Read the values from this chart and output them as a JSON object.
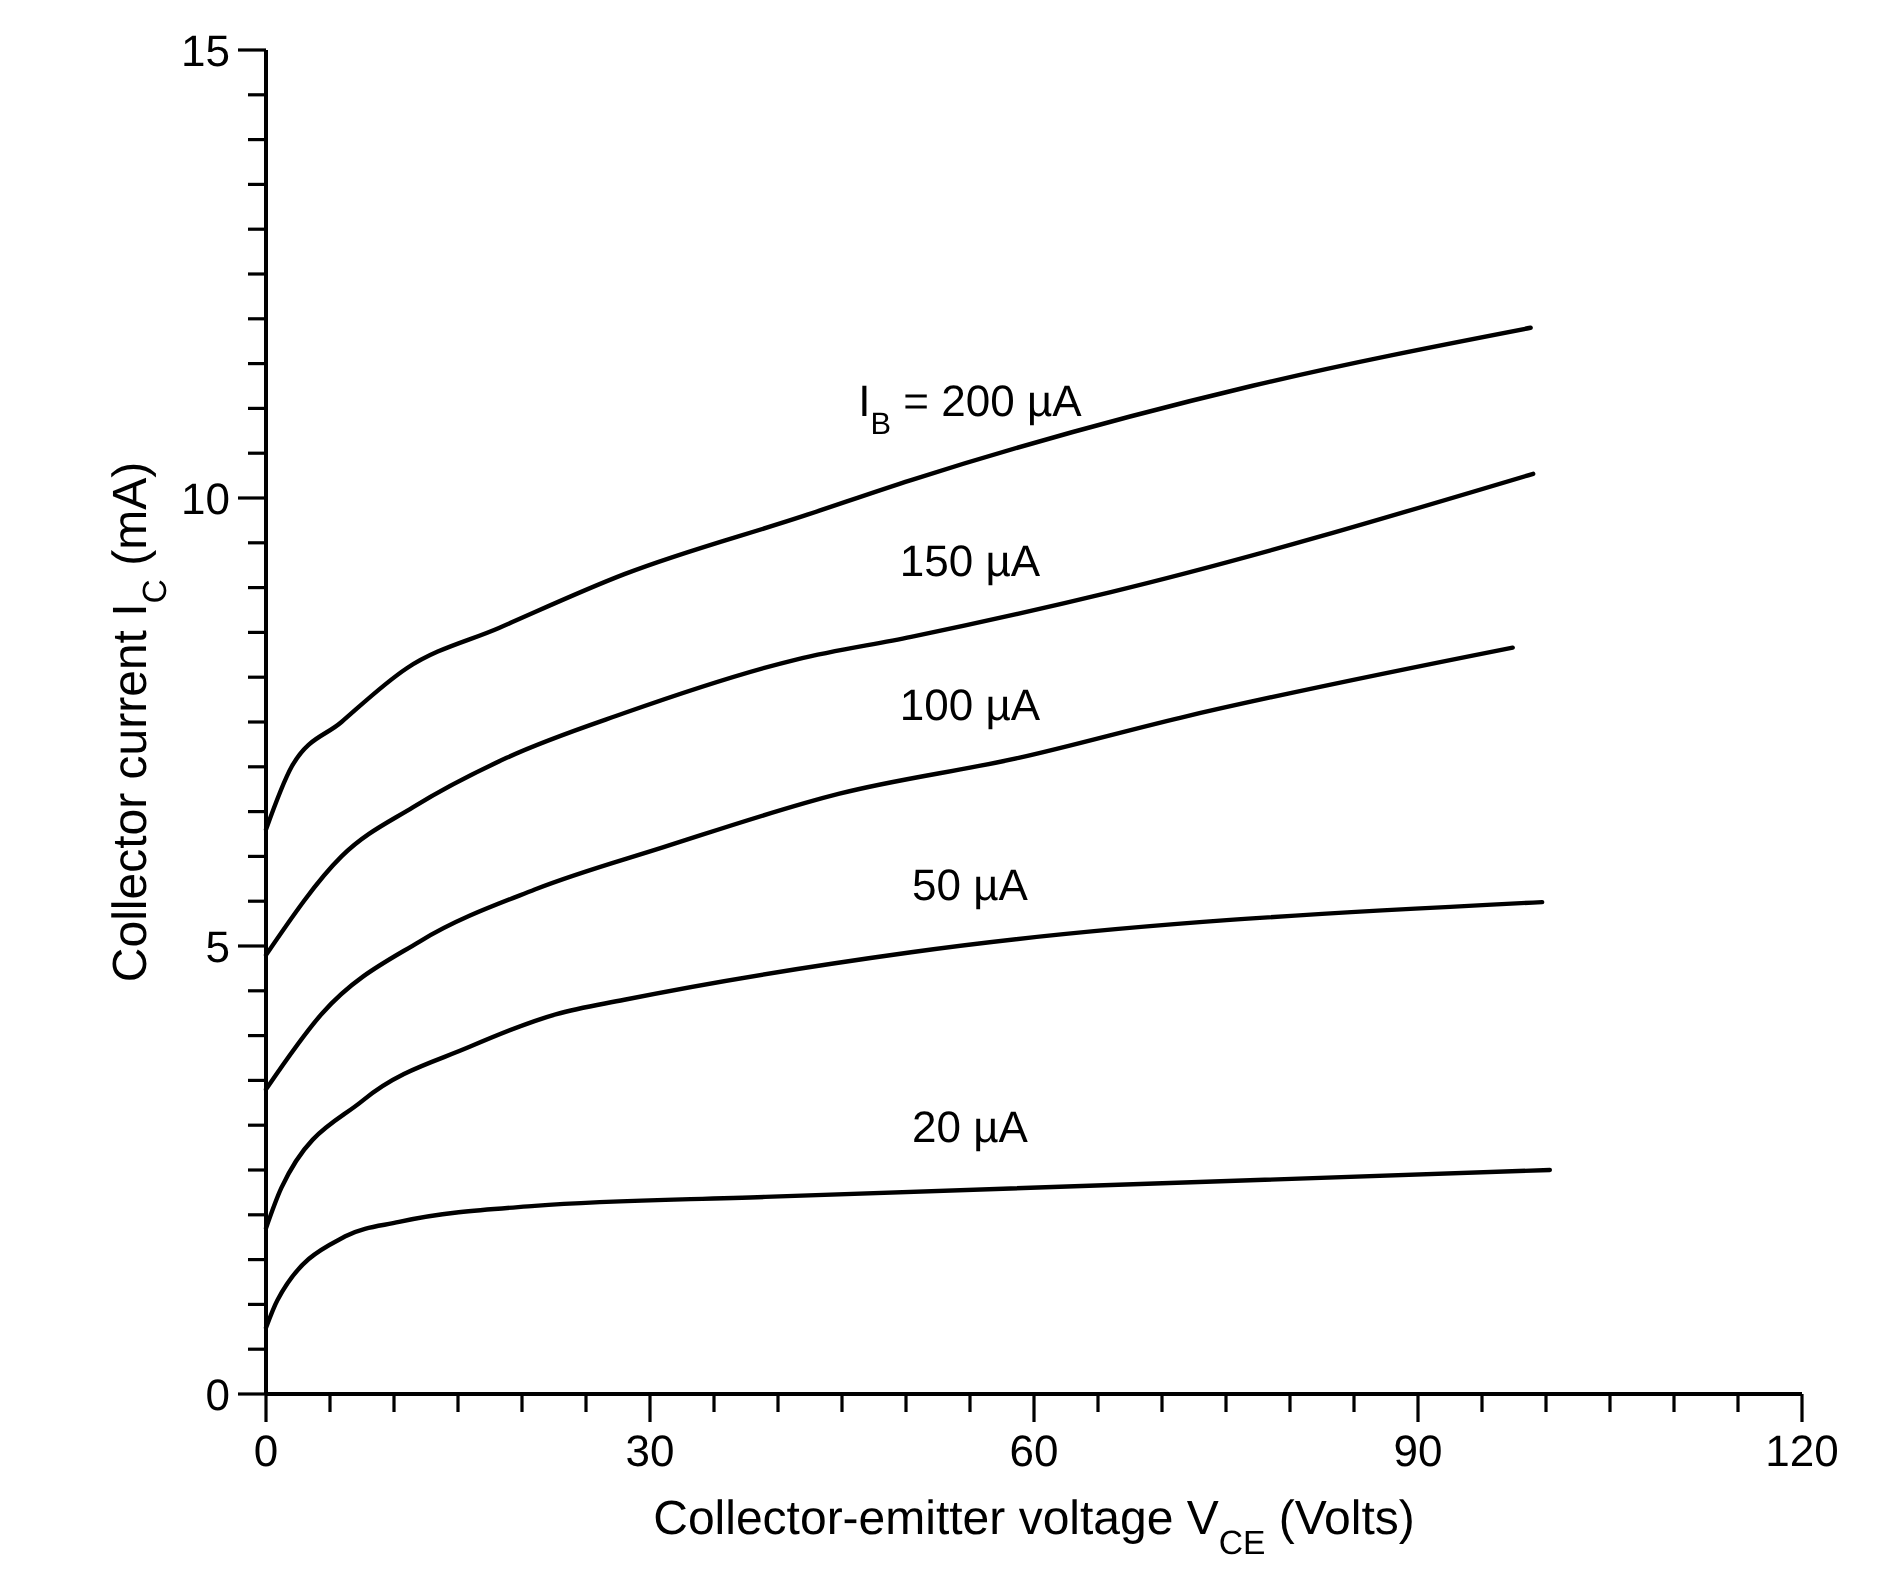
{
  "chart_data": {
    "type": "line",
    "xlabel": "Collector-emitter voltage V$_{CE}$ (Volts)",
    "ylabel": "Collector current I$_{C}$ (mA)",
    "xlim": [
      0,
      120
    ],
    "ylim": [
      0,
      15
    ],
    "xticks": [
      0,
      {
        "value": 5,
        "label": null
      },
      {
        "value": 10,
        "label": null
      },
      {
        "value": 15,
        "label": null
      },
      {
        "value": 20,
        "label": null
      },
      {
        "value": 25,
        "label": null
      },
      30,
      {
        "value": 35,
        "label": null
      },
      {
        "value": 40,
        "label": null
      },
      {
        "value": 45,
        "label": null
      },
      {
        "value": 50,
        "label": null
      },
      {
        "value": 55,
        "label": null
      },
      60,
      {
        "value": 65,
        "label": null
      },
      {
        "value": 70,
        "label": null
      },
      {
        "value": 75,
        "label": null
      },
      {
        "value": 80,
        "label": null
      },
      {
        "value": 85,
        "label": null
      },
      90,
      {
        "value": 95,
        "label": null
      },
      {
        "value": 100,
        "label": null
      },
      {
        "value": 105,
        "label": null
      },
      {
        "value": 110,
        "label": null
      },
      {
        "value": 115,
        "label": null
      },
      120
    ],
    "yticks": [
      0,
      {
        "value": 0.5,
        "label": null
      },
      {
        "value": 1,
        "label": null
      },
      {
        "value": 1.5,
        "label": null
      },
      {
        "value": 2,
        "label": null
      },
      {
        "value": 2.5,
        "label": null
      },
      {
        "value": 3,
        "label": null
      },
      {
        "value": 3.5,
        "label": null
      },
      {
        "value": 4,
        "label": null
      },
      {
        "value": 4.5,
        "label": null
      },
      5,
      {
        "value": 5.5,
        "label": null
      },
      {
        "value": 6,
        "label": null
      },
      {
        "value": 6.5,
        "label": null
      },
      {
        "value": 7,
        "label": null
      },
      {
        "value": 7.5,
        "label": null
      },
      {
        "value": 8,
        "label": null
      },
      {
        "value": 8.5,
        "label": null
      },
      {
        "value": 9,
        "label": null
      },
      {
        "value": 9.5,
        "label": null
      },
      10,
      {
        "value": 10.5,
        "label": null
      },
      {
        "value": 11,
        "label": null
      },
      {
        "value": 11.5,
        "label": null
      },
      {
        "value": 12,
        "label": null
      },
      {
        "value": 12.5,
        "label": null
      },
      {
        "value": 13,
        "label": null
      },
      {
        "value": 13.5,
        "label": null
      },
      {
        "value": 14,
        "label": null
      },
      {
        "value": 14.5,
        "label": null
      },
      15
    ],
    "grid": false,
    "line_style": "solid",
    "series": [
      {
        "name": "I$_{B}$ = 200 µA",
        "color": "#000000",
        "x": [
          0,
          2,
          5.9,
          11,
          18.2,
          28,
          42,
          50.4,
          77,
          98.8
        ],
        "values": [
          6.3,
          7.0,
          7.5,
          8.1,
          8.55,
          9.15,
          9.8,
          10.2,
          11.25,
          11.9
        ]
      },
      {
        "name": "150 µA",
        "color": "#000000",
        "x": [
          0,
          5.9,
          11.5,
          18.8,
          28,
          41.5,
          50.4,
          66,
          99
        ],
        "values": [
          4.9,
          6.0,
          6.55,
          7.1,
          7.6,
          8.2,
          8.45,
          8.95,
          10.27
        ]
      },
      {
        "name": "100 µA",
        "color": "#000000",
        "x": [
          0,
          4.4,
          12,
          21,
          31,
          44.8,
          58.8,
          71.5,
          97.4
        ],
        "values": [
          3.4,
          4.25,
          5.05,
          5.63,
          6.1,
          6.7,
          7.1,
          7.55,
          8.33
        ]
      },
      {
        "name": "50 µA",
        "color": "#000000",
        "x": [
          0,
          1.2,
          7.6,
          16,
          22.7,
          28,
          50.4,
          99.7
        ],
        "values": [
          1.85,
          2.3,
          3.28,
          3.88,
          4.24,
          4.4,
          4.93,
          5.49
        ]
      },
      {
        "name": "20 µA",
        "color": "#000000",
        "x": [
          0,
          0.9,
          6.2,
          10.4,
          21,
          39,
          100.3
        ],
        "values": [
          0.74,
          1.05,
          1.76,
          1.92,
          2.1,
          2.2,
          2.5
        ]
      }
    ]
  }
}
